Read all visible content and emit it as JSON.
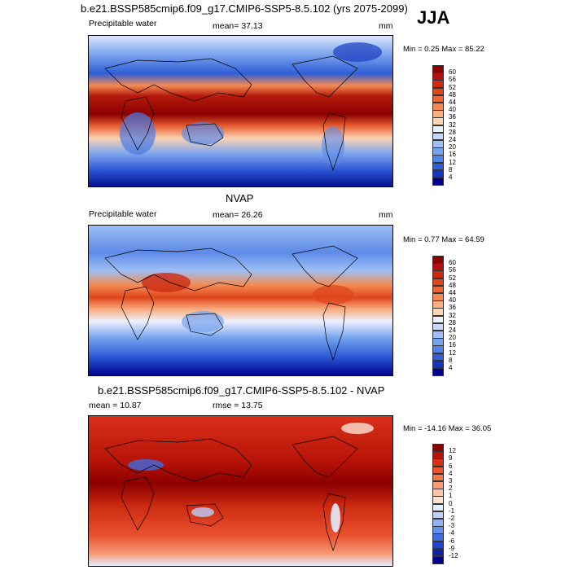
{
  "season": "JJA",
  "panels": [
    {
      "title": "b.e21.BSSP585cmip6.f09_g17.CMIP6-SSP5-8.5.102 (yrs 2075-2099)",
      "left_label": "Precipitable water",
      "mean_label": "mean=  37.13",
      "units": "mm",
      "minmax": "Min =   0.25 Max =   85.22"
    },
    {
      "title": "NVAP",
      "left_label": "Precipitable water",
      "mean_label": "mean=  26.26",
      "units": "mm",
      "minmax": "Min =   0.77 Max =   64.59"
    },
    {
      "title": "b.e21.BSSP585cmip6.f09_g17.CMIP6-SSP5-8.5.102 - NVAP",
      "left_label": "mean =   10.87",
      "mean_label": "rmse =   13.75",
      "units": "",
      "minmax": "Min = -14.16 Max =   36.05"
    }
  ],
  "colorbars": {
    "absolute": {
      "labels": [
        "60",
        "56",
        "52",
        "48",
        "44",
        "40",
        "36",
        "32",
        "28",
        "24",
        "20",
        "16",
        "12",
        "8",
        "4"
      ],
      "colors": [
        "#8b0000",
        "#b01010",
        "#cc2a10",
        "#e0451c",
        "#ec6534",
        "#f4894f",
        "#f9ad80",
        "#fcd5b5",
        "#eef0ff",
        "#c7d8fb",
        "#9ebff5",
        "#76a3ee",
        "#4f83e6",
        "#2f5ed8",
        "#1535bb",
        "#000090"
      ]
    },
    "difference": {
      "labels": [
        "12",
        "9",
        "6",
        "4",
        "3",
        "2",
        "1",
        "0",
        "-1",
        "-2",
        "-3",
        "-4",
        "-6",
        "-9",
        "-12"
      ],
      "colors": [
        "#8b0000",
        "#b81308",
        "#d9301a",
        "#ea5230",
        "#f2754c",
        "#f79b76",
        "#fbc3a8",
        "#fde3d2",
        "#e4ecfe",
        "#bcd0fa",
        "#8fb2f3",
        "#6590ec",
        "#3f6be0",
        "#1f45cc",
        "#0b22a8",
        "#000090"
      ]
    }
  },
  "chart_data": [
    {
      "type": "heatmap",
      "title": "b.e21.BSSP585cmip6.f09_g17.CMIP6-SSP5-8.5.102 (yrs 2075-2099)",
      "variable": "Precipitable water",
      "units": "mm",
      "mean": 37.13,
      "min": 0.25,
      "max": 85.22,
      "contour_levels": [
        4,
        8,
        12,
        16,
        20,
        24,
        28,
        32,
        36,
        40,
        44,
        48,
        52,
        56,
        60
      ]
    },
    {
      "type": "heatmap",
      "title": "NVAP",
      "variable": "Precipitable water",
      "units": "mm",
      "mean": 26.26,
      "min": 0.77,
      "max": 64.59,
      "contour_levels": [
        4,
        8,
        12,
        16,
        20,
        24,
        28,
        32,
        36,
        40,
        44,
        48,
        52,
        56,
        60
      ]
    },
    {
      "type": "heatmap",
      "title": "b.e21.BSSP585cmip6.f09_g17.CMIP6-SSP5-8.5.102 - NVAP",
      "mean": 10.87,
      "rmse": 13.75,
      "min": -14.16,
      "max": 36.05,
      "contour_levels": [
        -12,
        -9,
        -6,
        -4,
        -3,
        -2,
        -1,
        0,
        1,
        2,
        3,
        4,
        6,
        9,
        12
      ]
    }
  ]
}
